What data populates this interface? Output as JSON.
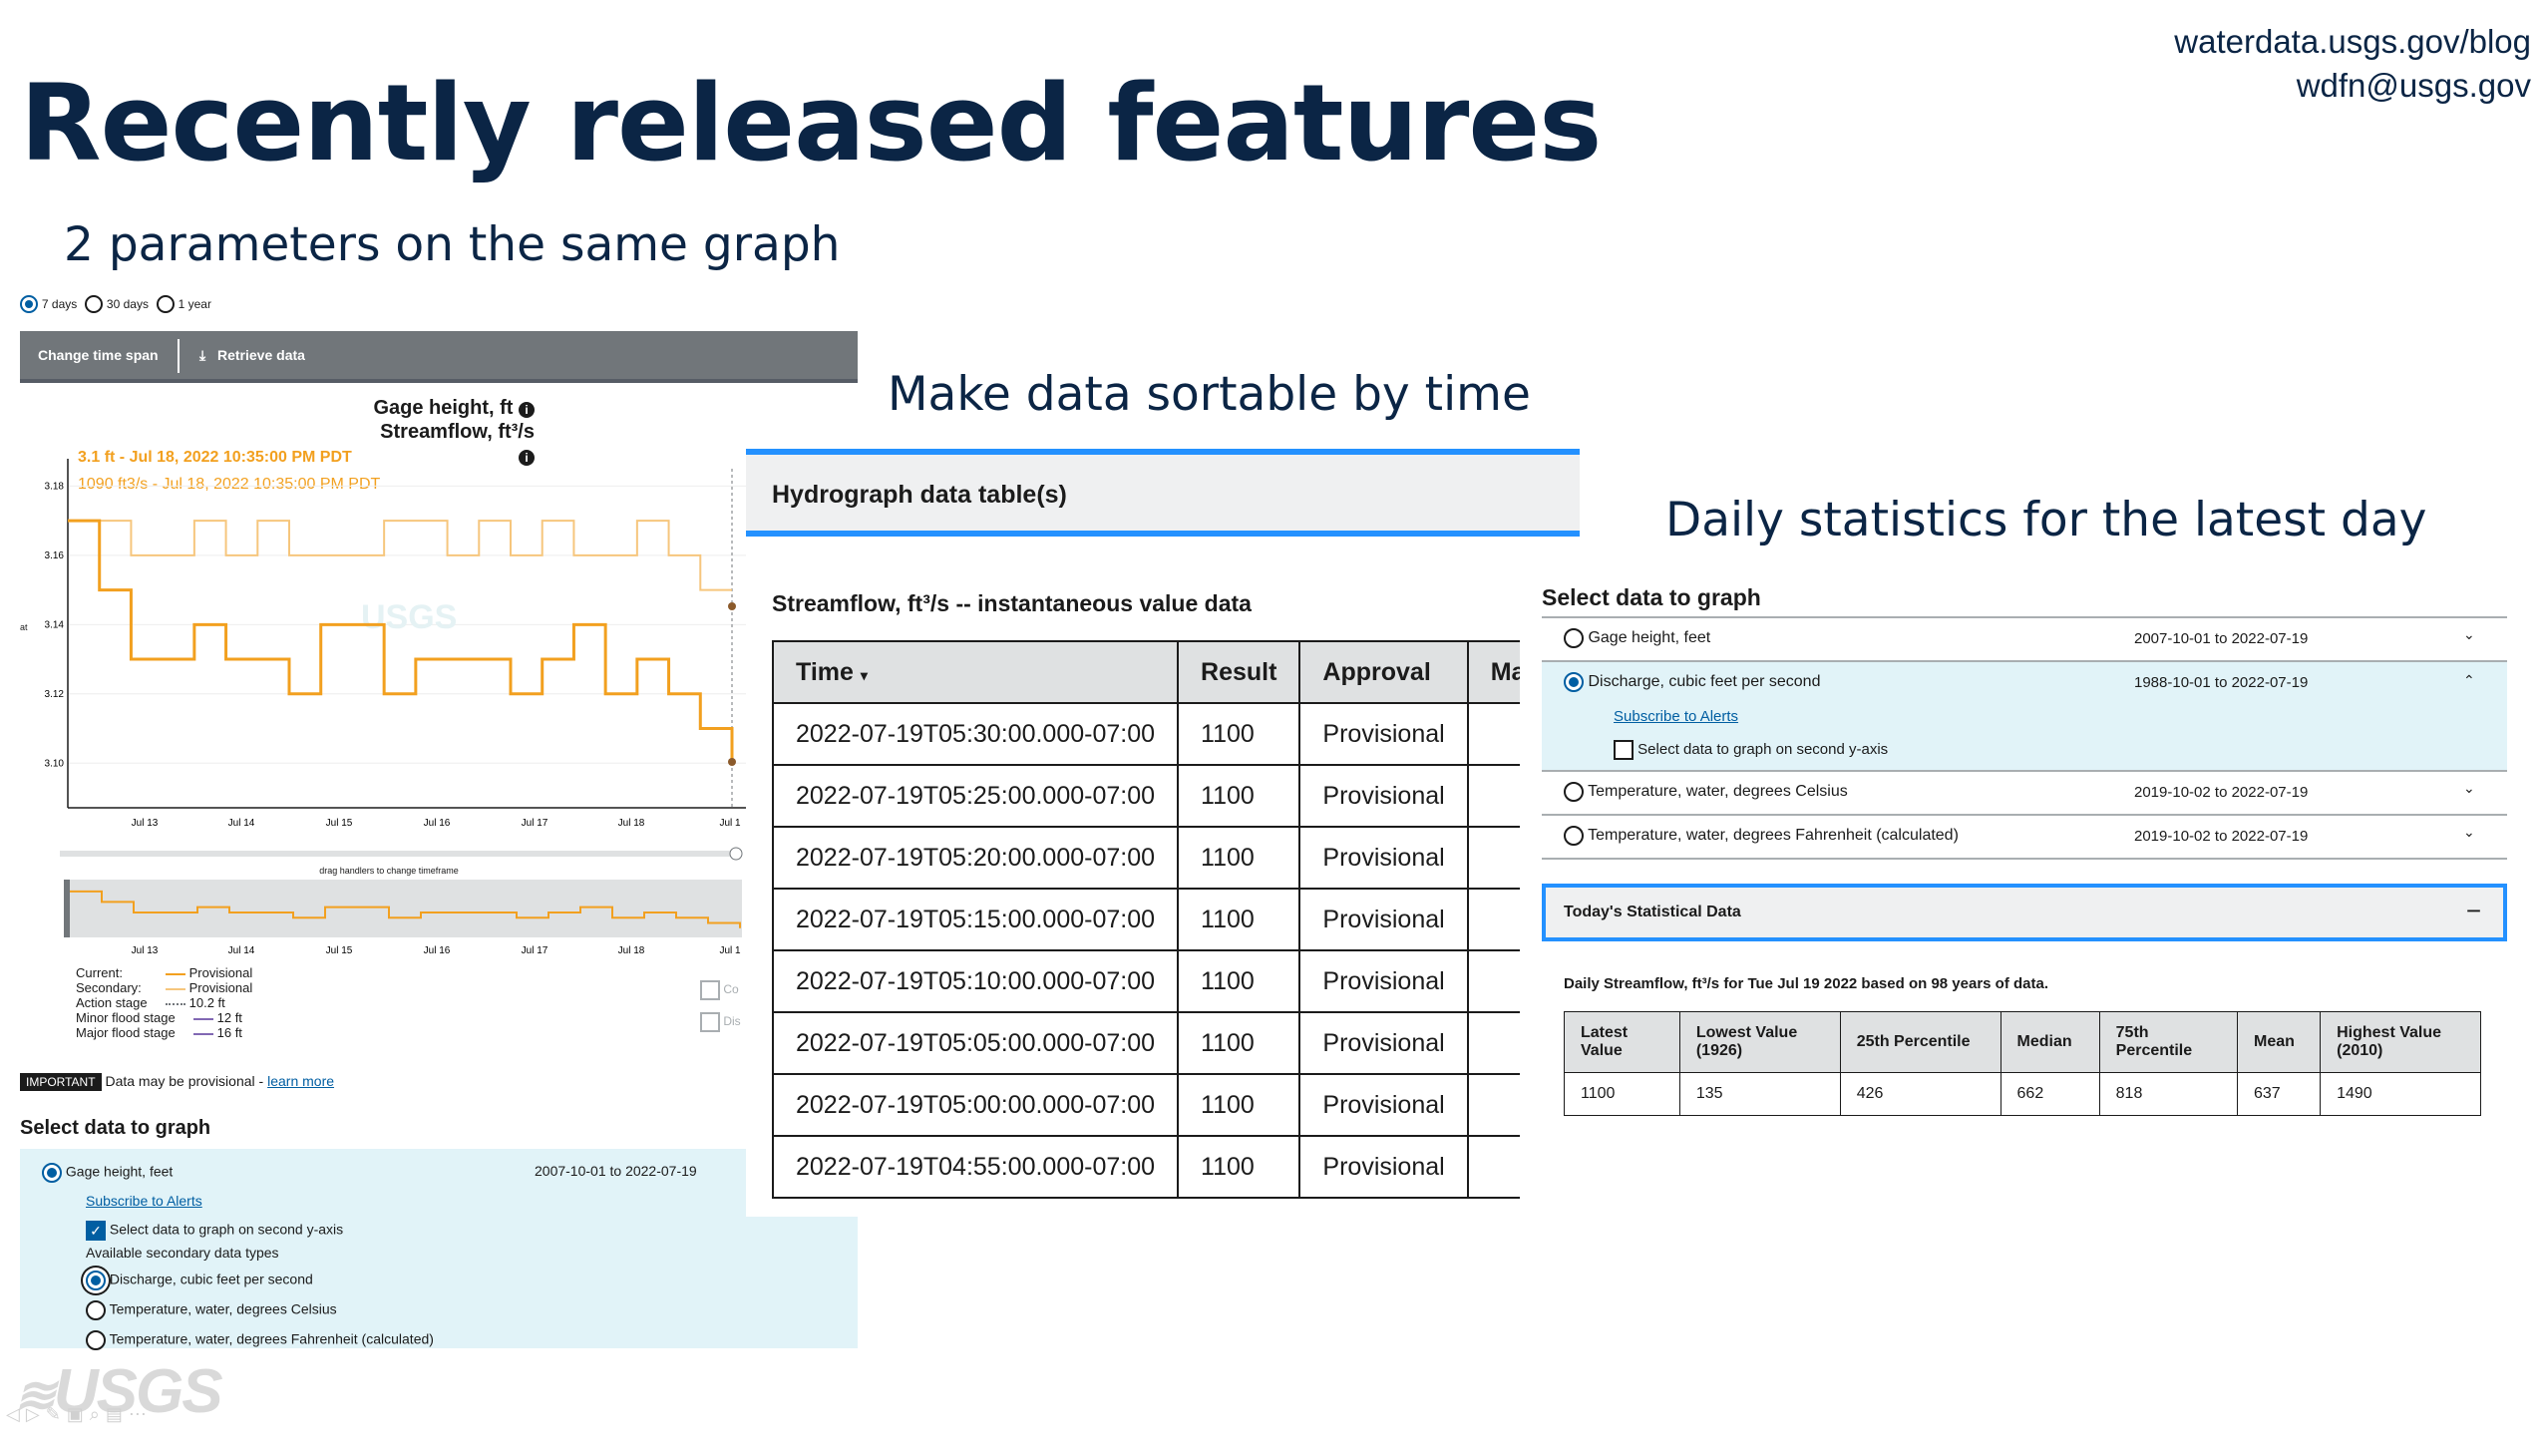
{
  "slide": {
    "title": "Recently released features",
    "contact_url": "waterdata.usgs.gov/blog",
    "contact_email": "wdfn@usgs.gov",
    "headings": {
      "two_params": "2 parameters on the same graph",
      "sortable": "Make data sortable by time",
      "daily_stats": "Daily statistics for the latest day"
    },
    "footer_logo": "USGS"
  },
  "left": {
    "time_options": [
      {
        "label": "7 days",
        "selected": true
      },
      {
        "label": "30 days",
        "selected": false
      },
      {
        "label": "1 year",
        "selected": false
      }
    ],
    "toolbar": {
      "change_label": "Change time span",
      "retrieve_label": "Retrieve data",
      "retrieve_icon": "download-icon"
    },
    "graph": {
      "title_line1": "Gage height, ft",
      "title_line2": "Streamflow, ft³/s",
      "tooltip_primary": "3.1 ft - Jul 18, 2022 10:35:00 PM PDT",
      "tooltip_secondary": "1090 ft3/s - Jul 18, 2022 10:35:00 PM PDT",
      "y_ticks": [
        "3.18",
        "3.16",
        "3.14",
        "3.12",
        "3.10"
      ],
      "x_ticks": [
        "Jul 13",
        "Jul 14",
        "Jul 15",
        "Jul 16",
        "Jul 17",
        "Jul 18",
        "Jul 1"
      ],
      "y_axis_label": "at",
      "watermark": "USGS",
      "brush_label": "drag handlers to change timeframe",
      "primary_color": "#f2a01f",
      "secondary_color": "#f6c67d",
      "chart_data": {
        "type": "line",
        "ylim": [
          3.09,
          3.185
        ],
        "x": [
          "Jul 12",
          "Jul 12",
          "Jul 12",
          "Jul 13",
          "Jul 13",
          "Jul 13",
          "Jul 14",
          "Jul 14",
          "Jul 14",
          "Jul 15",
          "Jul 15",
          "Jul 15",
          "Jul 16",
          "Jul 16",
          "Jul 16",
          "Jul 17",
          "Jul 17",
          "Jul 17",
          "Jul 18",
          "Jul 18",
          "Jul 18",
          "Jul 19"
        ],
        "series": [
          {
            "name": "Current",
            "values": [
              3.17,
              3.15,
              3.13,
              3.13,
              3.14,
              3.13,
              3.13,
              3.12,
              3.14,
              3.14,
              3.12,
              3.13,
              3.13,
              3.13,
              3.12,
              3.13,
              3.14,
              3.12,
              3.13,
              3.12,
              3.11,
              3.1
            ]
          },
          {
            "name": "Secondary",
            "values": [
              3.17,
              3.17,
              3.16,
              3.16,
              3.17,
              3.16,
              3.17,
              3.16,
              3.16,
              3.16,
              3.17,
              3.17,
              3.16,
              3.17,
              3.16,
              3.17,
              3.16,
              3.16,
              3.17,
              3.16,
              3.15,
              3.15
            ]
          }
        ]
      }
    },
    "legend": [
      {
        "label": "Current:",
        "value": "Provisional",
        "style": "solid"
      },
      {
        "label": "Secondary:",
        "value": "Provisional",
        "style": "solid-light"
      },
      {
        "label": "Action stage",
        "value": "10.2 ft",
        "style": "dotted"
      },
      {
        "label": "Minor flood stage",
        "value": "12 ft",
        "style": "blue"
      },
      {
        "label": "Major flood stage",
        "value": "16 ft",
        "style": "blue"
      }
    ],
    "side_checks": [
      "Co",
      "Dis"
    ],
    "important_badge": "IMPORTANT",
    "important_text": "Data may be provisional -",
    "learn_more": "learn more",
    "select_heading": "Select data to graph",
    "gage_label": "Gage height, feet",
    "gage_range": "2007-10-01 to 2022-07-19",
    "subscribe": "Subscribe to Alerts",
    "second_axis_label": "Select data to graph on second y-axis",
    "available_secondary": "Available secondary data types",
    "secondary_options": [
      {
        "label": "Discharge, cubic feet per second",
        "selected": true
      },
      {
        "label": "Temperature, water, degrees Celsius",
        "selected": false
      },
      {
        "label": "Temperature, water, degrees Fahrenheit (calculated)",
        "selected": false
      }
    ]
  },
  "table_panel": {
    "header": "Hydrograph data table(s)",
    "caption": "Streamflow, ft³/s -- instantaneous value data",
    "columns": [
      "Time",
      "Result",
      "Approval",
      "Mask"
    ],
    "rows": [
      [
        "2022-07-19T05:30:00.000-07:00",
        "1100",
        "Provisional",
        ""
      ],
      [
        "2022-07-19T05:25:00.000-07:00",
        "1100",
        "Provisional",
        ""
      ],
      [
        "2022-07-19T05:20:00.000-07:00",
        "1100",
        "Provisional",
        ""
      ],
      [
        "2022-07-19T05:15:00.000-07:00",
        "1100",
        "Provisional",
        ""
      ],
      [
        "2022-07-19T05:10:00.000-07:00",
        "1100",
        "Provisional",
        ""
      ],
      [
        "2022-07-19T05:05:00.000-07:00",
        "1100",
        "Provisional",
        ""
      ],
      [
        "2022-07-19T05:00:00.000-07:00",
        "1100",
        "Provisional",
        ""
      ],
      [
        "2022-07-19T04:55:00.000-07:00",
        "1100",
        "Provisional",
        ""
      ]
    ]
  },
  "stats_panel": {
    "select_heading": "Select data to graph",
    "params": [
      {
        "label": "Gage height, feet",
        "range": "2007-10-01 to 2022-07-19",
        "selected": false,
        "expanded": false
      },
      {
        "label": "Discharge, cubic feet per second",
        "range": "1988-10-01 to 2022-07-19",
        "selected": true,
        "expanded": true
      },
      {
        "label": "Temperature, water, degrees Celsius",
        "range": "2019-10-02 to 2022-07-19",
        "selected": false,
        "expanded": false
      },
      {
        "label": "Temperature, water, degrees Fahrenheit (calculated)",
        "range": "2019-10-02 to 2022-07-19",
        "selected": false,
        "expanded": false
      }
    ],
    "subscribe": "Subscribe to Alerts",
    "second_axis_label": "Select data to graph on second y-axis",
    "stats_header": "Today's Statistical Data",
    "stats_caption": "Daily Streamflow, ft³/s for Tue Jul 19 2022 based on 98 years of data.",
    "stats_columns": [
      "Latest Value",
      "Lowest Value (1926)",
      "25th Percentile",
      "Median",
      "75th Percentile",
      "Mean",
      "Highest Value (2010)"
    ],
    "stats_values": [
      "1100",
      "135",
      "426",
      "662",
      "818",
      "637",
      "1490"
    ]
  }
}
